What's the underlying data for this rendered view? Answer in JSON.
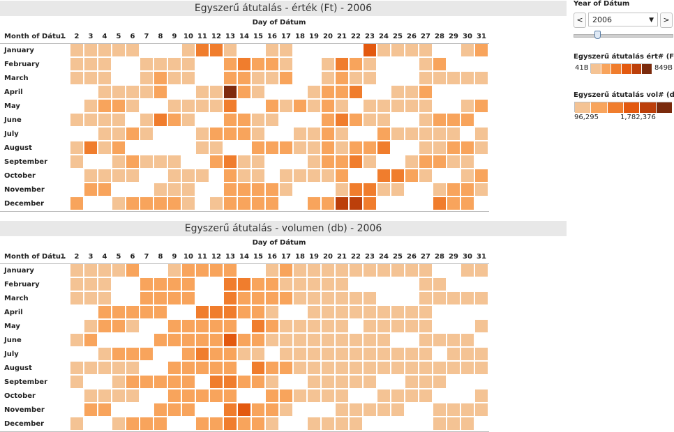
{
  "chart_data": [
    {
      "type": "heatmap",
      "title": "Egyszerű átutalás - érték (Ft) - 2006",
      "xlabel": "Day of Dátum",
      "ylabel": "Month of Dátu..",
      "x": [
        "1",
        "2",
        "3",
        "4",
        "5",
        "6",
        "7",
        "8",
        "9",
        "10",
        "11",
        "12",
        "13",
        "14",
        "15",
        "16",
        "17",
        "18",
        "19",
        "20",
        "21",
        "22",
        "23",
        "24",
        "25",
        "26",
        "27",
        "28",
        "29",
        "30",
        "31"
      ],
      "y": [
        "January",
        "February",
        "March",
        "April",
        "May",
        "June",
        "July",
        "August",
        "September",
        "October",
        "November",
        "December"
      ],
      "values": [
        [
          0,
          1,
          1,
          1,
          1,
          1,
          0,
          0,
          0,
          1,
          3,
          3,
          1,
          0,
          0,
          1,
          1,
          0,
          0,
          0,
          0,
          0,
          4,
          1,
          1,
          1,
          1,
          0,
          0,
          1,
          2
        ],
        [
          0,
          1,
          1,
          1,
          0,
          0,
          1,
          1,
          1,
          1,
          0,
          0,
          2,
          3,
          2,
          2,
          1,
          0,
          0,
          1,
          3,
          2,
          1,
          0,
          0,
          0,
          1,
          2,
          0,
          0,
          0
        ],
        [
          0,
          1,
          1,
          1,
          0,
          0,
          1,
          2,
          1,
          1,
          0,
          0,
          2,
          2,
          1,
          1,
          2,
          0,
          0,
          1,
          2,
          1,
          1,
          0,
          0,
          0,
          1,
          1,
          1,
          1,
          1
        ],
        [
          0,
          0,
          0,
          1,
          1,
          1,
          1,
          2,
          0,
          0,
          1,
          1,
          6,
          2,
          1,
          0,
          0,
          0,
          1,
          2,
          2,
          3,
          0,
          0,
          1,
          1,
          2,
          0,
          0,
          0,
          0
        ],
        [
          0,
          0,
          1,
          2,
          2,
          1,
          0,
          0,
          1,
          1,
          1,
          1,
          3,
          0,
          0,
          2,
          1,
          2,
          1,
          2,
          1,
          0,
          1,
          1,
          1,
          1,
          1,
          0,
          0,
          1,
          2
        ],
        [
          0,
          1,
          1,
          1,
          1,
          0,
          1,
          3,
          2,
          1,
          0,
          0,
          2,
          2,
          1,
          1,
          0,
          0,
          0,
          2,
          3,
          2,
          1,
          1,
          0,
          0,
          1,
          2,
          2,
          2,
          0
        ],
        [
          0,
          0,
          0,
          1,
          1,
          2,
          1,
          0,
          0,
          0,
          1,
          2,
          2,
          2,
          1,
          0,
          0,
          1,
          1,
          2,
          1,
          0,
          0,
          2,
          1,
          1,
          1,
          1,
          1,
          0,
          1
        ],
        [
          0,
          1,
          3,
          1,
          2,
          0,
          0,
          0,
          0,
          0,
          1,
          1,
          0,
          0,
          2,
          2,
          2,
          1,
          1,
          2,
          1,
          2,
          2,
          3,
          0,
          0,
          1,
          1,
          2,
          2,
          1
        ],
        [
          0,
          1,
          0,
          0,
          1,
          2,
          1,
          1,
          1,
          0,
          0,
          2,
          3,
          1,
          1,
          0,
          0,
          0,
          1,
          2,
          2,
          3,
          1,
          0,
          0,
          1,
          2,
          2,
          1,
          1,
          0
        ],
        [
          0,
          0,
          1,
          1,
          1,
          1,
          0,
          0,
          1,
          1,
          1,
          0,
          2,
          1,
          1,
          0,
          1,
          1,
          1,
          1,
          2,
          0,
          0,
          3,
          3,
          2,
          1,
          0,
          0,
          1,
          2
        ],
        [
          0,
          0,
          2,
          2,
          0,
          0,
          0,
          1,
          1,
          1,
          0,
          0,
          2,
          2,
          2,
          2,
          1,
          0,
          0,
          0,
          1,
          3,
          3,
          1,
          1,
          0,
          0,
          1,
          2,
          2,
          1
        ],
        [
          0,
          2,
          0,
          0,
          1,
          2,
          2,
          2,
          2,
          1,
          0,
          1,
          2,
          2,
          2,
          2,
          0,
          0,
          2,
          2,
          5,
          5,
          3,
          0,
          0,
          0,
          0,
          3,
          2,
          2,
          0
        ]
      ],
      "color_legend": {
        "title": "Egyszerű átutalás ért# (Ft)",
        "min_label": "41B",
        "max_label": "849B"
      },
      "colors": [
        "#f4c394",
        "#f8a45c",
        "#f07d2d",
        "#e3590f",
        "#bc3f0a",
        "#7f2b0e",
        "#7a2a0c"
      ]
    },
    {
      "type": "heatmap",
      "title": "Egyszerű átutalás - volumen (db) - 2006",
      "xlabel": "Day of Dátum",
      "ylabel": "Month of Dátu..",
      "x": [
        "1",
        "2",
        "3",
        "4",
        "5",
        "6",
        "7",
        "8",
        "9",
        "10",
        "11",
        "12",
        "13",
        "14",
        "15",
        "16",
        "17",
        "18",
        "19",
        "20",
        "21",
        "22",
        "23",
        "24",
        "25",
        "26",
        "27",
        "28",
        "29",
        "30",
        "31"
      ],
      "y": [
        "January",
        "February",
        "March",
        "April",
        "May",
        "June",
        "July",
        "August",
        "September",
        "October",
        "November",
        "December"
      ],
      "values": [
        [
          0,
          1,
          1,
          1,
          1,
          2,
          0,
          0,
          1,
          2,
          2,
          2,
          2,
          0,
          0,
          1,
          2,
          1,
          1,
          1,
          1,
          1,
          1,
          1,
          1,
          1,
          1,
          0,
          0,
          1,
          1
        ],
        [
          0,
          1,
          1,
          1,
          0,
          0,
          2,
          2,
          2,
          2,
          0,
          0,
          3,
          3,
          2,
          2,
          1,
          1,
          1,
          1,
          1,
          0,
          0,
          0,
          0,
          0,
          1,
          1,
          0,
          0,
          0
        ],
        [
          0,
          1,
          1,
          1,
          0,
          0,
          2,
          2,
          2,
          2,
          0,
          0,
          3,
          2,
          2,
          2,
          2,
          1,
          1,
          1,
          1,
          1,
          1,
          0,
          0,
          0,
          1,
          1,
          1,
          1,
          1
        ],
        [
          0,
          0,
          0,
          2,
          2,
          2,
          2,
          2,
          0,
          0,
          3,
          3,
          3,
          2,
          2,
          1,
          0,
          0,
          1,
          1,
          1,
          1,
          1,
          1,
          1,
          1,
          1,
          0,
          0,
          0,
          0
        ],
        [
          0,
          0,
          1,
          2,
          2,
          1,
          0,
          0,
          2,
          2,
          2,
          2,
          2,
          0,
          3,
          2,
          1,
          1,
          1,
          1,
          1,
          0,
          1,
          1,
          1,
          1,
          1,
          0,
          0,
          0,
          1
        ],
        [
          0,
          1,
          2,
          0,
          0,
          0,
          0,
          2,
          2,
          2,
          2,
          2,
          4,
          2,
          2,
          1,
          1,
          1,
          1,
          1,
          1,
          1,
          1,
          1,
          0,
          0,
          1,
          1,
          1,
          1,
          0
        ],
        [
          0,
          0,
          0,
          1,
          2,
          2,
          2,
          0,
          0,
          2,
          3,
          2,
          2,
          1,
          1,
          0,
          1,
          1,
          1,
          1,
          1,
          1,
          1,
          1,
          1,
          1,
          1,
          0,
          1,
          1,
          1
        ],
        [
          0,
          1,
          1,
          1,
          1,
          1,
          0,
          0,
          2,
          2,
          2,
          2,
          2,
          0,
          3,
          2,
          2,
          1,
          1,
          1,
          1,
          1,
          1,
          1,
          1,
          1,
          1,
          1,
          1,
          1,
          1
        ],
        [
          0,
          1,
          0,
          0,
          1,
          2,
          2,
          2,
          2,
          2,
          0,
          3,
          3,
          2,
          2,
          1,
          0,
          0,
          1,
          1,
          1,
          1,
          1,
          0,
          0,
          1,
          1,
          1,
          0,
          0,
          0
        ],
        [
          0,
          0,
          1,
          1,
          1,
          1,
          0,
          0,
          2,
          2,
          2,
          2,
          2,
          0,
          0,
          2,
          2,
          1,
          1,
          1,
          1,
          0,
          0,
          1,
          1,
          1,
          1,
          0,
          0,
          0,
          1
        ],
        [
          0,
          0,
          2,
          2,
          0,
          0,
          0,
          2,
          2,
          2,
          0,
          0,
          3,
          4,
          2,
          2,
          1,
          0,
          0,
          0,
          1,
          1,
          1,
          1,
          1,
          0,
          0,
          1,
          1,
          1,
          1
        ],
        [
          0,
          1,
          0,
          0,
          1,
          2,
          2,
          2,
          0,
          0,
          2,
          2,
          3,
          2,
          2,
          1,
          0,
          0,
          1,
          1,
          1,
          1,
          0,
          0,
          0,
          0,
          0,
          1,
          1,
          1,
          0
        ]
      ],
      "color_legend": {
        "title": "Egyszerű átutalás vol# (db)",
        "min_label": "96,295",
        "max_label": "1,782,376"
      },
      "colors": [
        "#f4c394",
        "#f8a45c",
        "#f07d2d",
        "#e3590f",
        "#bc3f0a"
      ]
    }
  ],
  "controls": {
    "year_filter_title": "Year of Dátum",
    "year_value": "2006",
    "prev_symbol": "<",
    "next_symbol": ">",
    "caret_symbol": "▼"
  },
  "legend_value": {
    "title": "Egyszerű átutalás ért# (Ft)",
    "min_label": "41B",
    "max_label": "849B",
    "colors": [
      "#f4c394",
      "#f8a45c",
      "#f07d2d",
      "#e3590f",
      "#bc3f0a",
      "#7a2a0c"
    ]
  },
  "legend_volume": {
    "title": "Egyszerű átutalás vol# (db)",
    "min_label": "96,295",
    "max_label": "1,782,376",
    "colors": [
      "#f4c394",
      "#f8a45c",
      "#f07d2d",
      "#e3590f",
      "#bc3f0a",
      "#7a2a0c"
    ]
  }
}
